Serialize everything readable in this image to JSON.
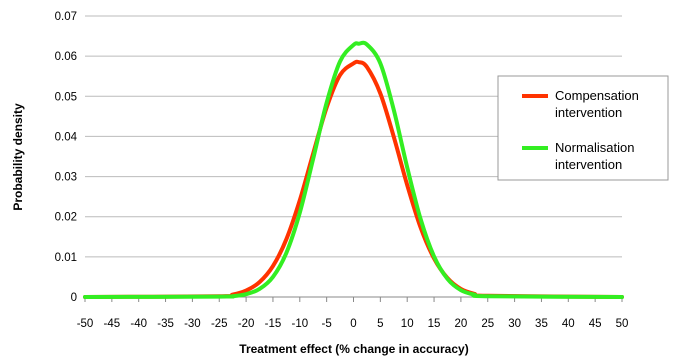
{
  "chart_data": {
    "type": "line",
    "title": "",
    "xlabel": "Treatment effect (% change in accuracy)",
    "ylabel": "Probability density",
    "xlim": [
      -50,
      50
    ],
    "ylim": [
      0,
      0.07
    ],
    "xticks": [
      -50,
      -45,
      -40,
      -35,
      -30,
      -25,
      -20,
      -15,
      -10,
      -5,
      0,
      5,
      10,
      15,
      20,
      25,
      30,
      35,
      40,
      45,
      50
    ],
    "yticks": [
      0,
      0.01,
      0.02,
      0.03,
      0.04,
      0.05,
      0.06,
      0.07
    ],
    "ytick_labels": [
      "0",
      "0.01",
      "0.02",
      "0.03",
      "0.04",
      "0.05",
      "0.06",
      "0.07"
    ],
    "grid": "horizontal",
    "legend_position": "right",
    "x": [
      -50,
      -25,
      -22.5,
      -20,
      -17.5,
      -15,
      -12.5,
      -10,
      -7.5,
      -5,
      -2.5,
      0,
      1,
      2.5,
      5,
      7.5,
      10,
      12.5,
      15,
      17.5,
      20,
      22.5,
      25,
      50
    ],
    "series": [
      {
        "name": "Compensation intervention",
        "color": "#ff3300",
        "values": [
          0,
          0.0002,
          0.0006,
          0.0016,
          0.0037,
          0.0077,
          0.0144,
          0.0241,
          0.0358,
          0.0472,
          0.0553,
          0.0582,
          0.0585,
          0.0573,
          0.0507,
          0.0399,
          0.0279,
          0.0173,
          0.0096,
          0.0047,
          0.002,
          0.0008,
          0.0003,
          0
        ]
      },
      {
        "name": "Normalisation intervention",
        "color": "#33ee22",
        "values": [
          0,
          0.0001,
          0.0002,
          0.0007,
          0.002,
          0.005,
          0.011,
          0.021,
          0.0345,
          0.0484,
          0.0587,
          0.0628,
          0.0631,
          0.0629,
          0.0582,
          0.0466,
          0.0323,
          0.0194,
          0.0101,
          0.0045,
          0.0017,
          0.0006,
          0.0002,
          0
        ]
      }
    ]
  }
}
